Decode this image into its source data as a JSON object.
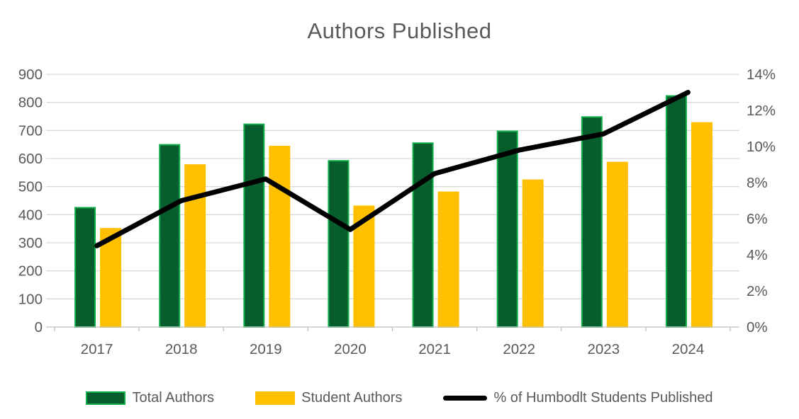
{
  "chart_data": {
    "type": "combo",
    "title": "Authors Published",
    "categories": [
      "2017",
      "2018",
      "2019",
      "2020",
      "2021",
      "2022",
      "2023",
      "2024"
    ],
    "series": [
      {
        "name": "Total Authors",
        "type": "bar",
        "axis": "left",
        "fill_color": "#075E2C",
        "border_color": "#12AE4B",
        "values": [
          425,
          649,
          722,
          592,
          655,
          697,
          748,
          823
        ]
      },
      {
        "name": "Student Authors",
        "type": "bar",
        "axis": "left",
        "fill_color": "#FFC000",
        "border_color": "#FFC000",
        "values": [
          350,
          577,
          643,
          430,
          480,
          523,
          586,
          727
        ]
      },
      {
        "name": "% of Humbodlt Students Published",
        "type": "line",
        "axis": "right",
        "line_color": "#000000",
        "values": [
          4.5,
          7,
          8.2,
          5.4,
          8.5,
          9.8,
          10.7,
          13
        ]
      }
    ],
    "left_axis": {
      "min": 0,
      "max": 900,
      "step": 100,
      "tick_labels": [
        "0",
        "100",
        "200",
        "300",
        "400",
        "500",
        "600",
        "700",
        "800",
        "900"
      ]
    },
    "right_axis": {
      "min": 0,
      "max": 14,
      "step": 2,
      "tick_labels": [
        "0%",
        "2%",
        "4%",
        "6%",
        "8%",
        "10%",
        "12%",
        "14%"
      ]
    },
    "grid": true,
    "legend_position": "bottom",
    "colors": {
      "grid_line": "#D9D9D9",
      "axis_line": "#BFBFBF",
      "label_text": "#595959",
      "title_text": "#595959"
    }
  }
}
